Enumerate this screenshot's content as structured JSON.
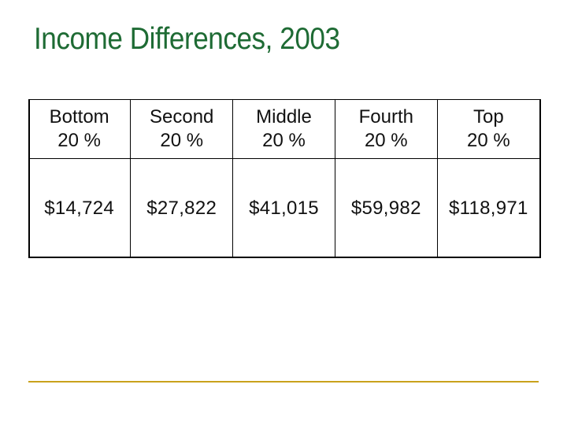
{
  "slide": {
    "title": "Income Differences, 2003"
  },
  "table": {
    "columns": [
      {
        "label_line1": "Bottom",
        "label_line2": "20 %",
        "value": "$14,724"
      },
      {
        "label_line1": "Second",
        "label_line2": "20 %",
        "value": "$27,822"
      },
      {
        "label_line1": "Middle",
        "label_line2": "20 %",
        "value": "$41,015"
      },
      {
        "label_line1": "Fourth",
        "label_line2": "20 %",
        "value": "$59,982"
      },
      {
        "label_line1": "Top",
        "label_line2": "20 %",
        "value": "$118,971"
      }
    ]
  },
  "colors": {
    "title": "#1e6b34",
    "rule": "#c9a21c",
    "text": "#111111"
  }
}
